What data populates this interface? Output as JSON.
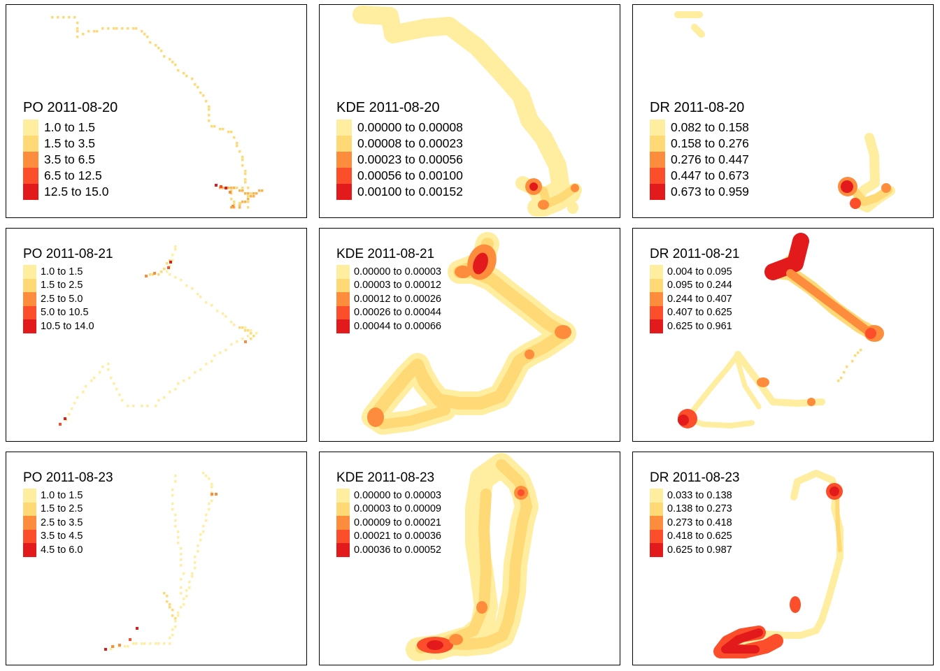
{
  "palette": [
    "#FFEDA0",
    "#FED976",
    "#FD8D3C",
    "#FC4E2A",
    "#E31A1C"
  ],
  "chart_data": [
    {
      "type": "heatmap",
      "title": "PO 2011-08-20",
      "legend": [
        "1.0 to 1.5",
        "1.5 to 3.5",
        "3.5 to 6.5",
        "6.5 to 12.5",
        "12.5 to 15.0"
      ]
    },
    {
      "type": "heatmap",
      "title": "KDE 2011-08-20",
      "legend": [
        "0.00000 to 0.00008",
        "0.00008 to 0.00023",
        "0.00023 to 0.00056",
        "0.00056 to 0.00100",
        "0.00100 to 0.00152"
      ]
    },
    {
      "type": "heatmap",
      "title": "DR 2011-08-20",
      "legend": [
        "0.082 to 0.158",
        "0.158 to 0.276",
        "0.276 to 0.447",
        "0.447 to 0.673",
        "0.673 to 0.959"
      ]
    },
    {
      "type": "heatmap",
      "title": "PO 2011-08-21",
      "legend": [
        "1.0 to 1.5",
        "1.5 to 2.5",
        "2.5 to 5.0",
        "5.0 to 10.5",
        "10.5 to 14.0"
      ]
    },
    {
      "type": "heatmap",
      "title": "KDE 2011-08-21",
      "legend": [
        "0.00000 to 0.00003",
        "0.00003 to 0.00012",
        "0.00012 to 0.00026",
        "0.00026 to 0.00044",
        "0.00044 to 0.00066"
      ]
    },
    {
      "type": "heatmap",
      "title": "DR 2011-08-21",
      "legend": [
        "0.004 to 0.095",
        "0.095 to 0.244",
        "0.244 to 0.407",
        "0.407 to 0.625",
        "0.625 to 0.961"
      ]
    },
    {
      "type": "heatmap",
      "title": "PO 2011-08-23",
      "legend": [
        "1.0 to 1.5",
        "1.5 to 2.5",
        "2.5 to 3.5",
        "3.5 to 4.5",
        "4.5 to 6.0"
      ]
    },
    {
      "type": "heatmap",
      "title": "KDE 2011-08-23",
      "legend": [
        "0.00000 to 0.00003",
        "0.00003 to 0.00009",
        "0.00009 to 0.00021",
        "0.00021 to 0.00036",
        "0.00036 to 0.00052"
      ]
    },
    {
      "type": "heatmap",
      "title": "DR 2011-08-23",
      "legend": [
        "0.033 to 0.138",
        "0.138 to 0.273",
        "0.273 to 0.418",
        "0.418 to 0.625",
        "0.625 to 0.987"
      ]
    }
  ]
}
